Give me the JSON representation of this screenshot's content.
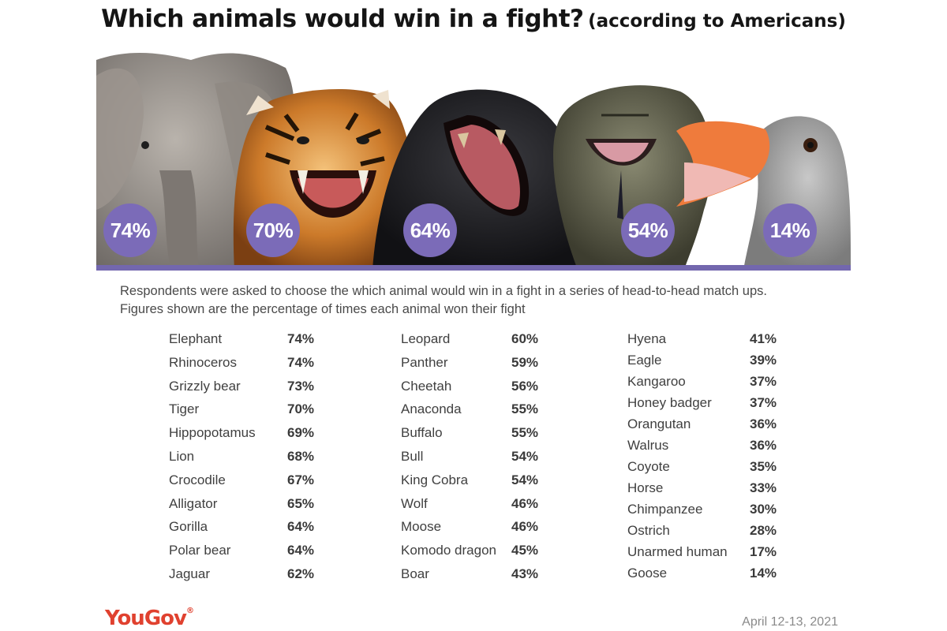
{
  "title": {
    "main": "Which animals would win in a fight?",
    "sub": "(according to Americans)"
  },
  "colors": {
    "accent": "#7b6bb8",
    "baseline": "#7367ae",
    "logo": "#e0412f"
  },
  "banner": {
    "animals": [
      {
        "name": "elephant",
        "pct": "74%"
      },
      {
        "name": "tiger",
        "pct": "70%"
      },
      {
        "name": "gorilla",
        "pct": "64%"
      },
      {
        "name": "king-cobra",
        "pct": "54%"
      },
      {
        "name": "goose",
        "pct": "14%"
      }
    ]
  },
  "note": {
    "line1": "Respondents were asked to choose the which animal would win in a fight in a series of head-to-head match ups.",
    "line2": "Figures shown are the percentage of times each animal won their fight"
  },
  "chart_data": {
    "type": "table",
    "title": "Which animals would win in a fight? (according to Americans)",
    "columns": [
      [
        {
          "animal": "Elephant",
          "pct": "74%"
        },
        {
          "animal": "Rhinoceros",
          "pct": "74%"
        },
        {
          "animal": "Grizzly bear",
          "pct": "73%"
        },
        {
          "animal": "Tiger",
          "pct": "70%"
        },
        {
          "animal": "Hippopotamus",
          "pct": "69%"
        },
        {
          "animal": "Lion",
          "pct": "68%"
        },
        {
          "animal": "Crocodile",
          "pct": "67%"
        },
        {
          "animal": "Alligator",
          "pct": "65%"
        },
        {
          "animal": "Gorilla",
          "pct": "64%"
        },
        {
          "animal": "Polar bear",
          "pct": "64%"
        },
        {
          "animal": "Jaguar",
          "pct": "62%"
        }
      ],
      [
        {
          "animal": "Leopard",
          "pct": "60%"
        },
        {
          "animal": "Panther",
          "pct": "59%"
        },
        {
          "animal": "Cheetah",
          "pct": "56%"
        },
        {
          "animal": "Anaconda",
          "pct": "55%"
        },
        {
          "animal": "Buffalo",
          "pct": "55%"
        },
        {
          "animal": "Bull",
          "pct": "54%"
        },
        {
          "animal": "King Cobra",
          "pct": "54%"
        },
        {
          "animal": "Wolf",
          "pct": "46%"
        },
        {
          "animal": "Moose",
          "pct": "46%"
        },
        {
          "animal": "Komodo dragon",
          "pct": "45%"
        },
        {
          "animal": "Boar",
          "pct": "43%"
        }
      ],
      [
        {
          "animal": "Hyena",
          "pct": "41%"
        },
        {
          "animal": "Eagle",
          "pct": "39%"
        },
        {
          "animal": "Kangaroo",
          "pct": "37%"
        },
        {
          "animal": "Honey badger",
          "pct": "37%"
        },
        {
          "animal": "Orangutan",
          "pct": "36%"
        },
        {
          "animal": "Walrus",
          "pct": "36%"
        },
        {
          "animal": "Coyote",
          "pct": "35%"
        },
        {
          "animal": "Horse",
          "pct": "33%"
        },
        {
          "animal": "Chimpanzee",
          "pct": "30%"
        },
        {
          "animal": "Ostrich",
          "pct": "28%"
        },
        {
          "animal": "Unarmed human",
          "pct": "17%"
        },
        {
          "animal": "Goose",
          "pct": "14%"
        }
      ]
    ]
  },
  "footer": {
    "logo": "YouGov",
    "logo_mark": "®",
    "date": "April 12-13, 2021"
  }
}
